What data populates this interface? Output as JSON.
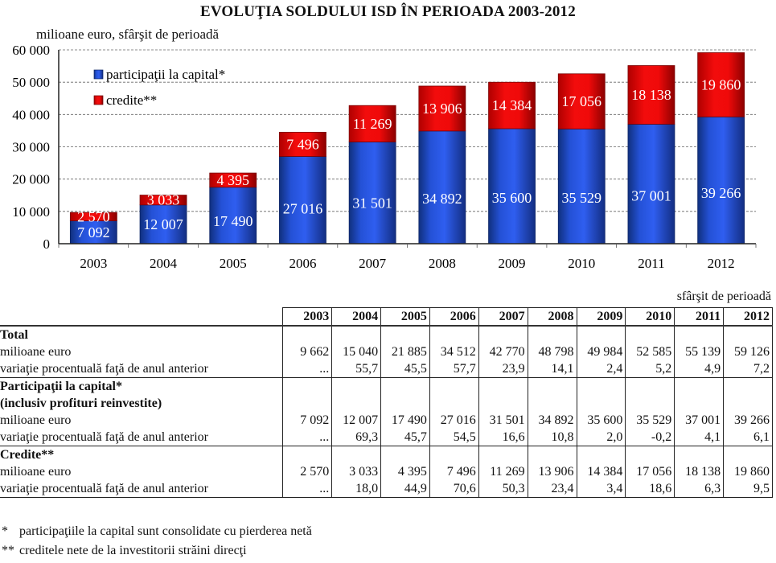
{
  "chart_data": {
    "type": "bar",
    "stacked": true,
    "title": "EVOLUŢIA SOLDULUI ISD ÎN PERIOADA 2003-2012",
    "ylabel": "milioane euro, sfârşit de perioadă",
    "xlabel": "",
    "ylim": [
      0,
      60000
    ],
    "yticks": [
      0,
      10000,
      20000,
      30000,
      40000,
      50000,
      60000
    ],
    "ytick_labels": [
      "0",
      "10 000",
      "20 000",
      "30 000",
      "40 000",
      "50 000",
      "60 000"
    ],
    "grid": true,
    "legend": "top-left",
    "categories": [
      "2003",
      "2004",
      "2005",
      "2006",
      "2007",
      "2008",
      "2009",
      "2010",
      "2011",
      "2012"
    ],
    "series": [
      {
        "name": "participaţii la capital*",
        "color": "#1f4fd8",
        "values": [
          7092,
          12007,
          17490,
          27016,
          31501,
          34892,
          35600,
          35529,
          37001,
          39266
        ],
        "labels": [
          "7 092",
          "12 007",
          "17 490",
          "27 016",
          "31 501",
          "34 892",
          "35 600",
          "35 529",
          "37 001",
          "39 266"
        ]
      },
      {
        "name": "credite**",
        "color": "#e10b0b",
        "values": [
          2570,
          3033,
          4395,
          7496,
          11269,
          13906,
          14384,
          17056,
          18138,
          19860
        ],
        "labels": [
          "2 570",
          "3 033",
          "4 395",
          "7 496",
          "11 269",
          "13 906",
          "14 384",
          "17 056",
          "18 138",
          "19 860"
        ]
      }
    ]
  },
  "table": {
    "period_note": "sfârşit de perioadă",
    "years": [
      "2003",
      "2004",
      "2005",
      "2006",
      "2007",
      "2008",
      "2009",
      "2010",
      "2011",
      "2012"
    ],
    "groups": [
      {
        "title": [
          "Total"
        ],
        "rows": [
          {
            "label": "milioane euro",
            "values": [
              "9 662",
              "15 040",
              "21 885",
              "34 512",
              "42 770",
              "48 798",
              "49 984",
              "52 585",
              "55 139",
              "59 126"
            ]
          },
          {
            "label": "variaţie procentuală faţă de anul anterior",
            "values": [
              "...",
              "55,7",
              "45,5",
              "57,7",
              "23,9",
              "14,1",
              "2,4",
              "5,2",
              "4,9",
              "7,2"
            ]
          }
        ]
      },
      {
        "title": [
          "Participaţii la capital*",
          "(inclusiv profituri reinvestite)"
        ],
        "rows": [
          {
            "label": "milioane euro",
            "values": [
              "7 092",
              "12 007",
              "17 490",
              "27 016",
              "31 501",
              "34 892",
              "35 600",
              "35 529",
              "37 001",
              "39 266"
            ]
          },
          {
            "label": "variaţie procentuală faţă de anul anterior",
            "values": [
              "...",
              "69,3",
              "45,7",
              "54,5",
              "16,6",
              "10,8",
              "2,0",
              "-0,2",
              "4,1",
              "6,1"
            ]
          }
        ]
      },
      {
        "title": [
          "Credite**"
        ],
        "rows": [
          {
            "label": "milioane euro",
            "values": [
              "2 570",
              "3 033",
              "4 395",
              "7 496",
              "11 269",
              "13 906",
              "14 384",
              "17 056",
              "18 138",
              "19 860"
            ]
          },
          {
            "label": "variaţie procentuală faţă de anul anterior",
            "values": [
              "...",
              "18,0",
              "44,9",
              "70,6",
              "50,3",
              "23,4",
              "3,4",
              "18,6",
              "6,3",
              "9,5"
            ]
          }
        ]
      }
    ]
  },
  "footnotes": [
    {
      "mark": "*",
      "text": "participaţiile la capital sunt consolidate cu pierderea netă"
    },
    {
      "mark": "**",
      "text": "creditele nete de la investitorii străini direcţi"
    }
  ]
}
